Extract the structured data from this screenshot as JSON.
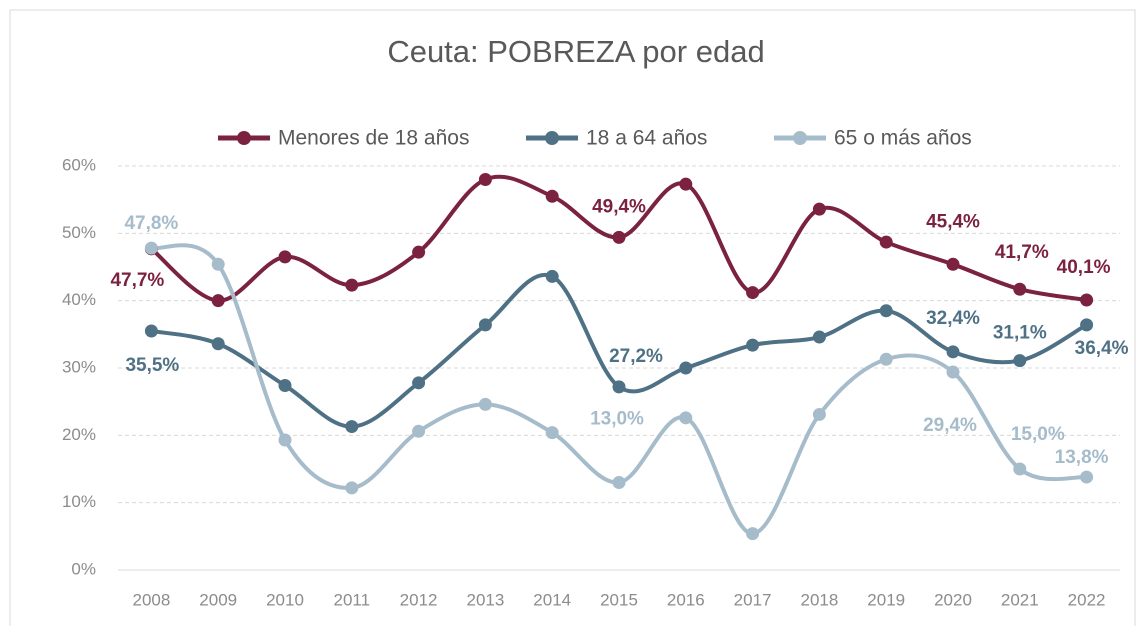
{
  "chart_data": {
    "type": "line",
    "title": "Ceuta: POBREZA por edad",
    "categories": [
      "2008",
      "2009",
      "2010",
      "2011",
      "2012",
      "2013",
      "2014",
      "2015",
      "2016",
      "2017",
      "2018",
      "2019",
      "2020",
      "2021",
      "2022"
    ],
    "series": [
      {
        "name": "Menores de 18 años",
        "color": "#7b2241",
        "values": [
          47.7,
          40.0,
          46.5,
          42.3,
          47.2,
          58.0,
          55.5,
          49.4,
          57.3,
          41.2,
          53.6,
          48.7,
          45.4,
          41.7,
          40.1
        ],
        "value_labels": [
          "47,7%",
          null,
          null,
          null,
          null,
          null,
          null,
          "49,4%",
          null,
          null,
          null,
          null,
          "45,4%",
          "41,7%",
          "40,1%"
        ]
      },
      {
        "name": "18 a 64 años",
        "color": "#4f7185",
        "values": [
          35.5,
          33.6,
          27.4,
          21.3,
          27.8,
          36.4,
          43.6,
          27.2,
          30.0,
          33.4,
          34.6,
          38.5,
          32.4,
          31.1,
          36.4
        ],
        "value_labels": [
          "35,5%",
          null,
          null,
          null,
          null,
          null,
          null,
          "27,2%",
          null,
          null,
          null,
          null,
          "32,4%",
          "31,1%",
          "36,4%"
        ]
      },
      {
        "name": "65 o más años",
        "color": "#a6bccb",
        "values": [
          47.8,
          45.4,
          19.3,
          12.2,
          20.6,
          24.6,
          20.4,
          13.0,
          22.6,
          5.4,
          23.1,
          31.3,
          29.4,
          15.0,
          13.8
        ],
        "value_labels": [
          "47,8%",
          null,
          null,
          null,
          null,
          null,
          null,
          "13,0%",
          null,
          null,
          null,
          null,
          "29,4%",
          "15,0%",
          "13,8%"
        ]
      }
    ],
    "ylim": [
      0,
      60
    ],
    "yticks": [
      {
        "value": 0,
        "label": "0%"
      },
      {
        "value": 10,
        "label": "10%"
      },
      {
        "value": 20,
        "label": "20%"
      },
      {
        "value": 30,
        "label": "30%"
      },
      {
        "value": 40,
        "label": "40%"
      },
      {
        "value": 50,
        "label": "50%"
      },
      {
        "value": 60,
        "label": "60%"
      }
    ],
    "grid": true,
    "smooth": true,
    "legend": "top"
  }
}
